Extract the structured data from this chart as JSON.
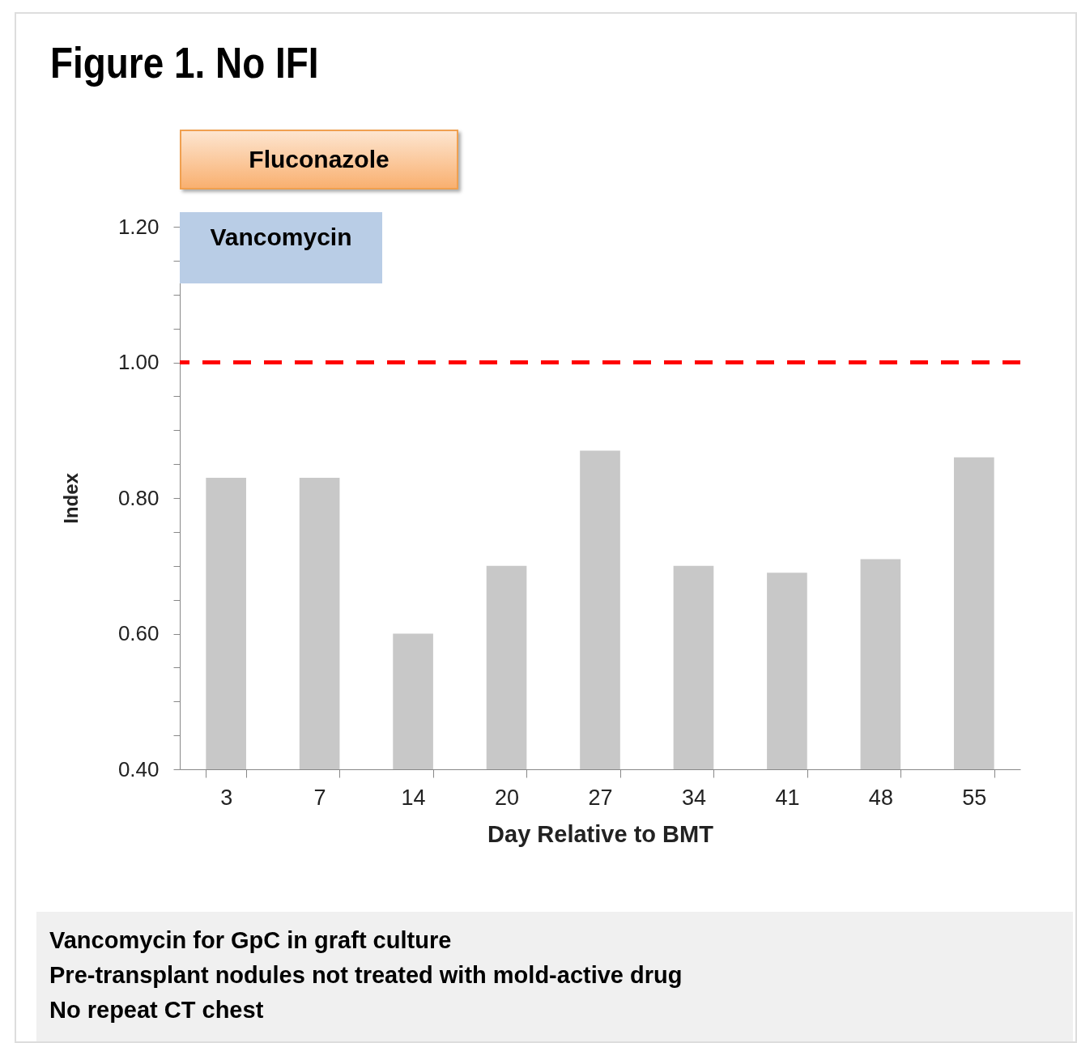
{
  "chart_data": {
    "type": "bar",
    "title": "Figure 1. No IFI",
    "xlabel": "Day Relative to BMT",
    "ylabel": "Index",
    "categories": [
      "3",
      "7",
      "14",
      "20",
      "27",
      "34",
      "41",
      "48",
      "55"
    ],
    "values": [
      0.83,
      0.83,
      0.6,
      0.7,
      0.87,
      0.7,
      0.69,
      0.71,
      0.86
    ],
    "color": "#c8c8c8",
    "ylim": [
      0.4,
      1.2
    ],
    "yticks": [
      {
        "value": 0.4,
        "label": "0.40"
      },
      {
        "value": 0.45,
        "label": null
      },
      {
        "value": 0.5,
        "label": null
      },
      {
        "value": 0.55,
        "label": null
      },
      {
        "value": 0.6,
        "label": "0.60"
      },
      {
        "value": 0.65,
        "label": null
      },
      {
        "value": 0.7,
        "label": null
      },
      {
        "value": 0.75,
        "label": null
      },
      {
        "value": 0.8,
        "label": "0.80"
      },
      {
        "value": 0.85,
        "label": null
      },
      {
        "value": 0.9,
        "label": null
      },
      {
        "value": 0.95,
        "label": null
      },
      {
        "value": 1.0,
        "label": "1.00"
      },
      {
        "value": 1.05,
        "label": null
      },
      {
        "value": 1.1,
        "label": null
      },
      {
        "value": 1.15,
        "label": null
      },
      {
        "value": 1.2,
        "label": "1.20"
      }
    ],
    "ref_lines": [
      {
        "axis": "y",
        "value": 1.0,
        "color": "#ff0000",
        "line_style": "dashed"
      }
    ],
    "annotations": [
      "Fluconazole",
      "Vancomycin",
      "Vancomycin for GpC in graft culture",
      "Pre-transplant nodules not treated with mold-active drug",
      "No repeat CT chest"
    ]
  }
}
